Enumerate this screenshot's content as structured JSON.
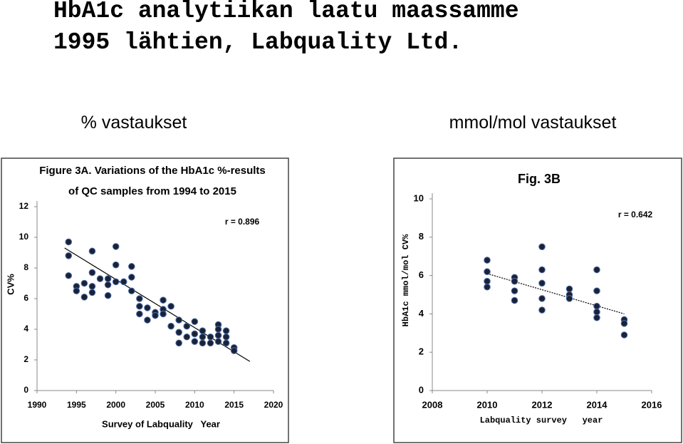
{
  "slide": {
    "title": [
      "HbA1c analytiikan laatu maassamme",
      "1995 lähtien, Labquality Ltd."
    ],
    "headings": [
      "% vastaukset",
      "mmol/mol vastaukset"
    ]
  },
  "chart_data": [
    {
      "type": "scatter",
      "title": [
        "Figure 3A. Variations of the HbA1c %-results",
        "of QC samples from 1994 to 2015"
      ],
      "x_label": "Survey of Labquality   Year",
      "y_label": "CV%",
      "annotation": "r = 0.896",
      "color": "#1c2235",
      "x": [
        1994,
        1994,
        1994,
        1995,
        1995,
        1996,
        1996,
        1997,
        1997,
        1997,
        1997,
        1998,
        1999,
        1999,
        1999,
        2000,
        2000,
        2000,
        2001,
        2002,
        2002,
        2002,
        2003,
        2003,
        2003,
        2004,
        2004,
        2005,
        2005,
        2006,
        2006,
        2006,
        2007,
        2007,
        2008,
        2008,
        2008,
        2009,
        2009,
        2010,
        2010,
        2010,
        2011,
        2011,
        2011,
        2012,
        2012,
        2013,
        2013,
        2013,
        2013,
        2014,
        2014,
        2014,
        2015,
        2015
      ],
      "values": [
        9.7,
        8.8,
        7.5,
        6.8,
        6.5,
        7.0,
        6.1,
        9.1,
        7.7,
        6.8,
        6.4,
        7.3,
        7.3,
        6.9,
        6.2,
        9.4,
        8.2,
        7.1,
        7.1,
        8.1,
        7.4,
        6.5,
        6.0,
        5.5,
        5.0,
        5.4,
        4.6,
        5.1,
        4.9,
        5.9,
        5.3,
        5.0,
        5.5,
        4.2,
        4.6,
        3.8,
        3.1,
        4.2,
        3.5,
        4.5,
        3.7,
        3.2,
        3.9,
        3.5,
        3.1,
        3.5,
        3.1,
        4.3,
        4.0,
        3.6,
        3.2,
        3.9,
        3.5,
        3.1,
        2.8,
        2.6
      ],
      "trendline": {
        "x": [
          1993.5,
          2017
        ],
        "y": [
          9.3,
          1.9
        ]
      },
      "xlim": [
        1990,
        2020
      ],
      "xticks": [
        1990,
        1995,
        2000,
        2005,
        2010,
        2015,
        2020
      ],
      "ylim": [
        0,
        12
      ],
      "yticks": [
        0,
        2,
        4,
        6,
        8,
        10,
        12
      ]
    },
    {
      "type": "scatter",
      "title": [
        "Fig. 3B"
      ],
      "x_label": "Labquality survey   year",
      "y_label": "HbA1c mmol/mol CV%",
      "annotation": "r = 0.642",
      "color": "#1c2235",
      "x": [
        2010,
        2010,
        2010,
        2010,
        2011,
        2011,
        2011,
        2011,
        2012,
        2012,
        2012,
        2012,
        2012,
        2013,
        2013,
        2013,
        2014,
        2014,
        2014,
        2014,
        2014,
        2015,
        2015,
        2015
      ],
      "values": [
        6.8,
        6.2,
        5.7,
        5.4,
        5.9,
        5.7,
        5.2,
        4.7,
        7.5,
        6.3,
        5.6,
        4.8,
        4.2,
        5.3,
        5.0,
        4.8,
        6.3,
        5.2,
        4.4,
        4.1,
        3.8,
        3.7,
        3.5,
        2.9
      ],
      "trendline": {
        "x": [
          2010,
          2015
        ],
        "y": [
          6.1,
          4.0
        ]
      },
      "xlim": [
        2008,
        2016
      ],
      "xticks": [
        2008,
        2010,
        2012,
        2014,
        2016
      ],
      "ylim": [
        0,
        10
      ],
      "yticks": [
        0,
        2,
        4,
        6,
        8,
        10
      ]
    }
  ]
}
